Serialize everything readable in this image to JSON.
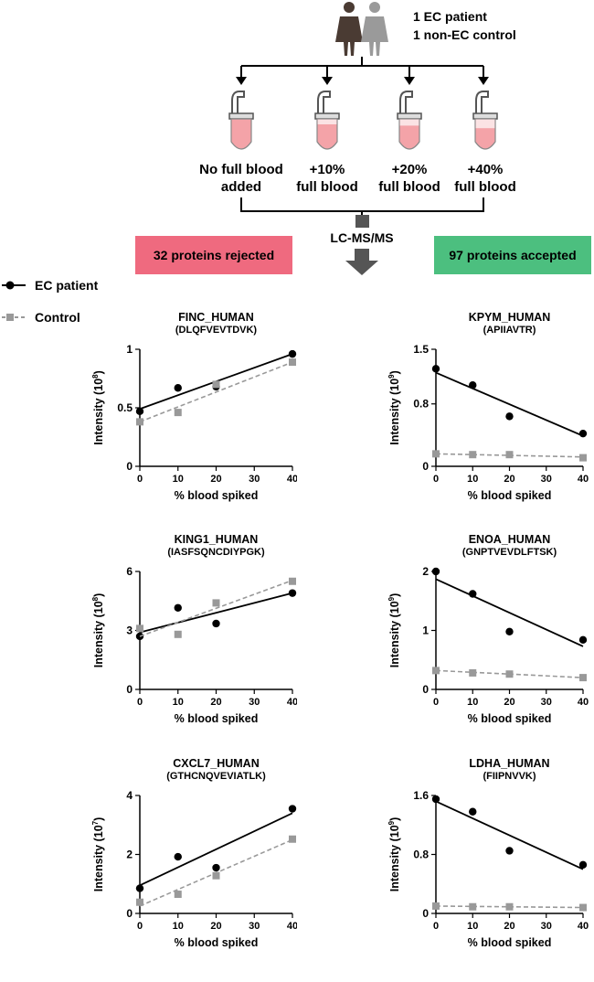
{
  "header": {
    "patients_line1": "1 EC patient",
    "patients_line2": "1 non-EC control",
    "conditions": [
      {
        "line1": "No full blood",
        "line2": "added",
        "fill_level": 0.0
      },
      {
        "line1": "+10%",
        "line2": "full blood",
        "fill_level": 0.1
      },
      {
        "line1": "+20%",
        "line2": "full blood",
        "fill_level": 0.2
      },
      {
        "line1": "+40%",
        "line2": "full blood",
        "fill_level": 0.4
      }
    ],
    "method": "LC-MS/MS",
    "rejected": "32 proteins rejected",
    "accepted": "97 proteins accepted"
  },
  "legend": {
    "ec_patient": "EC patient",
    "control": "Control"
  },
  "colors": {
    "ec": "#000000",
    "control": "#999999",
    "rejected_bg": "#ef6a7f",
    "accepted_bg": "#4cbf7f",
    "person_dark": "#4a3b33",
    "person_light": "#9a9a9a",
    "tube_fill": "#f4a3a8"
  },
  "chart_data": [
    {
      "type": "scatter",
      "title": "FINC_HUMAN",
      "subtitle": "(DLQFVEVTDVK)",
      "xlabel": "% blood spiked",
      "ylabel": "Intensity (10",
      "ylabel_exp": "8",
      "xlim": [
        0,
        40
      ],
      "ylim": [
        0,
        1
      ],
      "xticks": [
        0,
        10,
        20,
        30,
        40
      ],
      "yticks": [
        0,
        0.5,
        1
      ],
      "ytick_labels": [
        "0",
        "0.5",
        "1"
      ],
      "x": [
        0,
        10,
        20,
        40
      ],
      "series": [
        {
          "name": "EC patient",
          "values": [
            0.47,
            0.67,
            0.68,
            0.96
          ],
          "fit": [
            0.49,
            0.96
          ]
        },
        {
          "name": "Control",
          "values": [
            0.38,
            0.46,
            0.7,
            0.89
          ],
          "fit": [
            0.38,
            0.89
          ]
        }
      ]
    },
    {
      "type": "scatter",
      "title": "KPYM_HUMAN",
      "subtitle": "(APIIAVTR)",
      "xlabel": "% blood spiked",
      "ylabel": "Intensity (10",
      "ylabel_exp": "9",
      "xlim": [
        0,
        40
      ],
      "ylim": [
        0,
        1.5
      ],
      "xticks": [
        0,
        10,
        20,
        30,
        40
      ],
      "yticks": [
        0,
        0.8,
        1.5
      ],
      "ytick_labels": [
        "0",
        "0.8",
        "1.5"
      ],
      "x": [
        0,
        10,
        20,
        40
      ],
      "series": [
        {
          "name": "EC patient",
          "values": [
            1.25,
            1.04,
            0.64,
            0.42
          ],
          "fit": [
            1.2,
            0.39
          ]
        },
        {
          "name": "Control",
          "values": [
            0.16,
            0.15,
            0.15,
            0.11
          ],
          "fit": [
            0.16,
            0.12
          ]
        }
      ]
    },
    {
      "type": "scatter",
      "title": "KING1_HUMAN",
      "subtitle": "(IASFSQNCDIYPGK)",
      "xlabel": "% blood spiked",
      "ylabel": "Intensity (10",
      "ylabel_exp": "8",
      "xlim": [
        0,
        40
      ],
      "ylim": [
        0,
        6
      ],
      "xticks": [
        0,
        10,
        20,
        30,
        40
      ],
      "yticks": [
        0,
        3,
        6
      ],
      "ytick_labels": [
        "0",
        "3",
        "6"
      ],
      "x": [
        0,
        10,
        20,
        40
      ],
      "series": [
        {
          "name": "EC patient",
          "values": [
            2.7,
            4.15,
            3.35,
            4.9
          ],
          "fit": [
            2.9,
            4.9
          ]
        },
        {
          "name": "Control",
          "values": [
            3.1,
            2.8,
            4.4,
            5.5
          ],
          "fit": [
            2.7,
            5.55
          ]
        }
      ]
    },
    {
      "type": "scatter",
      "title": "ENOA_HUMAN",
      "subtitle": "(GNPTVEVDLFTSK)",
      "xlabel": "% blood spiked",
      "ylabel": "Intensity (10",
      "ylabel_exp": "9",
      "xlim": [
        0,
        40
      ],
      "ylim": [
        0,
        2
      ],
      "xticks": [
        0,
        10,
        20,
        30,
        40
      ],
      "yticks": [
        0,
        1,
        2
      ],
      "ytick_labels": [
        "0",
        "1",
        "2"
      ],
      "x": [
        0,
        10,
        20,
        40
      ],
      "series": [
        {
          "name": "EC patient",
          "values": [
            2.0,
            1.62,
            0.98,
            0.84
          ],
          "fit": [
            1.87,
            0.73
          ]
        },
        {
          "name": "Control",
          "values": [
            0.32,
            0.28,
            0.26,
            0.2
          ],
          "fit": [
            0.32,
            0.2
          ]
        }
      ]
    },
    {
      "type": "scatter",
      "title": "CXCL7_HUMAN",
      "subtitle": "(GTHCNQVEVIATLK)",
      "xlabel": "% blood spiked",
      "ylabel": "Intensity (10",
      "ylabel_exp": "7",
      "xlim": [
        0,
        40
      ],
      "ylim": [
        0,
        4
      ],
      "xticks": [
        0,
        10,
        20,
        30,
        40
      ],
      "yticks": [
        0,
        2,
        4
      ],
      "ytick_labels": [
        "0",
        "2",
        "4"
      ],
      "x": [
        0,
        10,
        20,
        40
      ],
      "series": [
        {
          "name": "EC patient",
          "values": [
            0.85,
            1.92,
            1.55,
            3.55
          ],
          "fit": [
            0.95,
            3.4
          ]
        },
        {
          "name": "Control",
          "values": [
            0.38,
            0.65,
            1.28,
            2.52
          ],
          "fit": [
            0.25,
            2.5
          ]
        }
      ]
    },
    {
      "type": "scatter",
      "title": "LDHA_HUMAN",
      "subtitle": "(FIIPNVVK)",
      "xlabel": "% blood spiked",
      "ylabel": "Intensity (10",
      "ylabel_exp": "9",
      "xlim": [
        0,
        40
      ],
      "ylim": [
        0,
        1.6
      ],
      "xticks": [
        0,
        10,
        20,
        30,
        40
      ],
      "yticks": [
        0,
        0.8,
        1.6
      ],
      "ytick_labels": [
        "0",
        "0.8",
        "1.6"
      ],
      "x": [
        0,
        10,
        20,
        40
      ],
      "series": [
        {
          "name": "EC patient",
          "values": [
            1.55,
            1.38,
            0.85,
            0.66
          ],
          "fit": [
            1.52,
            0.6
          ]
        },
        {
          "name": "Control",
          "values": [
            0.1,
            0.09,
            0.09,
            0.08
          ],
          "fit": [
            0.1,
            0.08
          ]
        }
      ]
    }
  ]
}
